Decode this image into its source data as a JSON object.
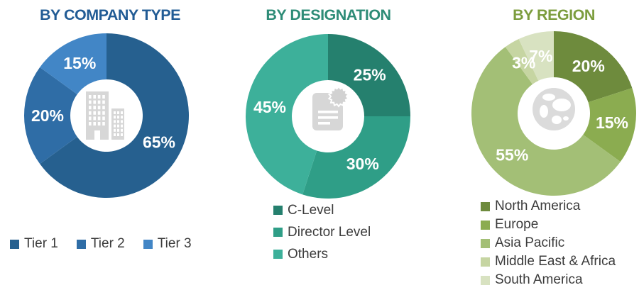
{
  "chart_data": [
    {
      "type": "donut",
      "title": "BY COMPANY TYPE",
      "title_color": "#225C95",
      "categories": [
        "Tier 1",
        "Tier 2",
        "Tier 3"
      ],
      "values": [
        65,
        20,
        15
      ],
      "unit": "%",
      "slice_labels": [
        "65%",
        "20%",
        "15%"
      ],
      "colors": [
        "#26608F",
        "#2F6DA6",
        "#4286C6"
      ],
      "slice_label_color": "#FFFFFF",
      "center_icon": "buildings-icon",
      "legend_position": "bottom-horizontal",
      "slice_order": "clockwise-from-top"
    },
    {
      "type": "donut",
      "title": "BY DESIGNATION",
      "title_color": "#2E8C77",
      "categories": [
        "C-Level",
        "Director Level",
        "Others"
      ],
      "values": [
        25,
        30,
        45
      ],
      "unit": "%",
      "slice_labels": [
        "25%",
        "30%",
        "45%"
      ],
      "colors": [
        "#25806E",
        "#2F9E87",
        "#3DB09A"
      ],
      "slice_label_color": "#FFFFFF",
      "center_icon": "document-icon",
      "legend_position": "bottom-vertical",
      "slice_order": "clockwise-from-top"
    },
    {
      "type": "donut",
      "title": "BY REGION",
      "title_color": "#7C9D3E",
      "categories": [
        "North America",
        "Europe",
        "Asia Pacific",
        "Middle East & Africa",
        "South America"
      ],
      "values": [
        20,
        15,
        55,
        3,
        7
      ],
      "unit": "%",
      "slice_labels": [
        "20%",
        "15%",
        "55%",
        "3%",
        "7%"
      ],
      "colors": [
        "#6E8B3D",
        "#8BAC50",
        "#A3BF76",
        "#C6D5A2",
        "#D8E2C1"
      ],
      "slice_label_color": "#FFFFFF",
      "center_icon": "globe-icon",
      "legend_position": "bottom-vertical",
      "slice_order": "clockwise-from-top"
    }
  ],
  "slice_label_suffix": "%",
  "icon_color": "#D7D7D7",
  "background_color": "#FFFFFF",
  "legend_text_color": "#3B3B3B"
}
